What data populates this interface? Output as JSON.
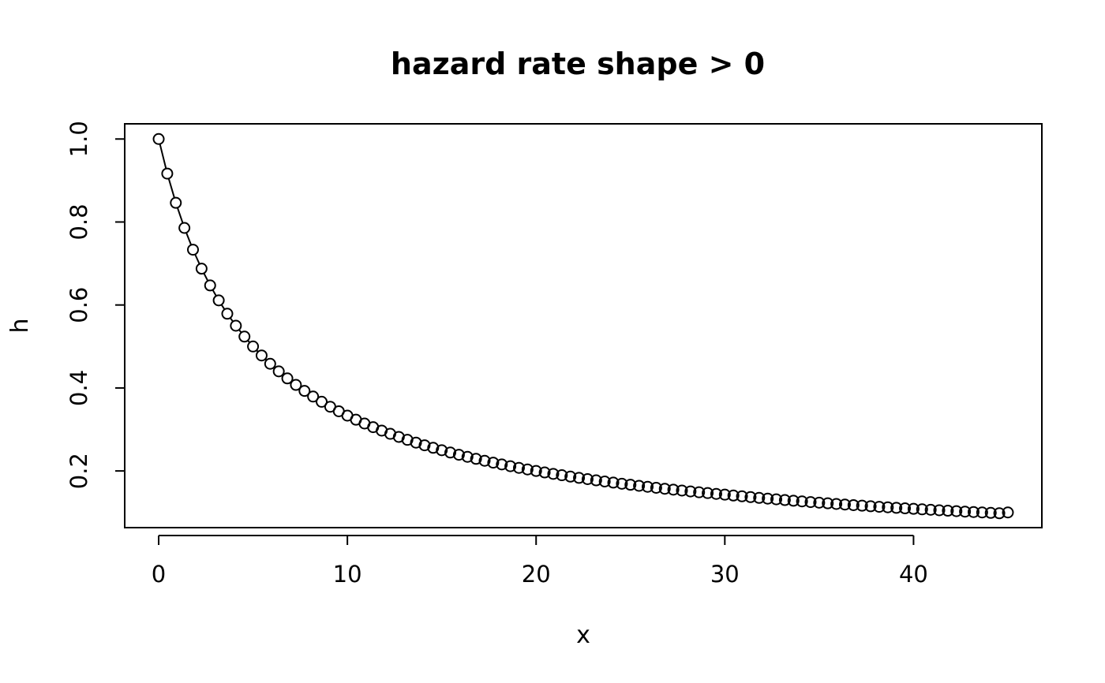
{
  "chart_data": {
    "type": "line",
    "title": "hazard rate shape > 0",
    "xlabel": "x",
    "ylabel": "h",
    "xlim": [
      -1.8,
      46.8
    ],
    "ylim": [
      0.0634,
      1.0366
    ],
    "x_ticks": [
      0,
      10,
      20,
      30,
      40
    ],
    "y_ticks": [
      0.2,
      0.4,
      0.6,
      0.8,
      1.0
    ],
    "y_tick_labels": [
      "0.2",
      "0.4",
      "0.6",
      "0.8",
      "1.0"
    ],
    "grid": false,
    "legend": "none",
    "line_color": "#000000",
    "marker": "open-circle",
    "series": [
      {
        "x": [
          0,
          0.4545,
          0.9091,
          1.3636,
          1.8182,
          2.2727,
          2.7273,
          3.1818,
          3.6364,
          4.0909,
          4.5455,
          5,
          5.4545,
          5.9091,
          6.3636,
          6.8182,
          7.2727,
          7.7273,
          8.1818,
          8.6364,
          9.0909,
          9.5455,
          10,
          10.4545,
          10.9091,
          11.3636,
          11.8182,
          12.2727,
          12.7273,
          13.1818,
          13.6364,
          14.0909,
          14.5455,
          15,
          15.4545,
          15.9091,
          16.3636,
          16.8182,
          17.2727,
          17.7273,
          18.1818,
          18.6364,
          19.0909,
          19.5455,
          20,
          20.4545,
          20.9091,
          21.3636,
          21.8182,
          22.2727,
          22.7273,
          23.1818,
          23.6364,
          24.0909,
          24.5455,
          25,
          25.4545,
          25.9091,
          26.3636,
          26.8182,
          27.2727,
          27.7273,
          28.1818,
          28.6364,
          29.0909,
          29.5455,
          30,
          30.4545,
          30.9091,
          31.3636,
          31.8182,
          32.2727,
          32.7273,
          33.1818,
          33.6364,
          34.0909,
          34.5455,
          35,
          35.4545,
          35.9091,
          36.3636,
          36.8182,
          37.2727,
          37.7273,
          38.1818,
          38.6364,
          39.0909,
          39.5455,
          40,
          40.4545,
          40.9091,
          41.3636,
          41.8182,
          42.2727,
          42.7273,
          43.1818,
          43.6364,
          44.0909,
          44.5455,
          45
        ],
        "y": [
          1,
          0.9167,
          0.8462,
          0.7857,
          0.7333,
          0.6875,
          0.6471,
          0.6111,
          0.5789,
          0.55,
          0.5238,
          0.5,
          0.4783,
          0.4583,
          0.44,
          0.4231,
          0.4074,
          0.3929,
          0.3793,
          0.3667,
          0.3548,
          0.3438,
          0.3333,
          0.3235,
          0.3143,
          0.3056,
          0.2973,
          0.2895,
          0.2821,
          0.275,
          0.2683,
          0.2619,
          0.2558,
          0.25,
          0.2444,
          0.2391,
          0.234,
          0.2292,
          0.2245,
          0.22,
          0.2157,
          0.2115,
          0.2075,
          0.2037,
          0.2,
          0.1964,
          0.193,
          0.1897,
          0.1864,
          0.1833,
          0.1803,
          0.1774,
          0.1746,
          0.1719,
          0.1692,
          0.1667,
          0.1642,
          0.1618,
          0.1594,
          0.1571,
          0.1549,
          0.1528,
          0.1507,
          0.1486,
          0.1467,
          0.1447,
          0.1429,
          0.1408,
          0.1389,
          0.137,
          0.1351,
          0.1333,
          0.1316,
          0.1299,
          0.1282,
          0.1266,
          0.125,
          0.1235,
          0.122,
          0.1205,
          0.119,
          0.1176,
          0.1163,
          0.1149,
          0.1136,
          0.1124,
          0.1111,
          0.1099,
          0.1087,
          0.1075,
          0.1064,
          0.1053,
          0.1042,
          0.1031,
          0.102,
          0.101,
          0.1,
          0.099,
          0.098,
          0.1
        ]
      }
    ]
  }
}
